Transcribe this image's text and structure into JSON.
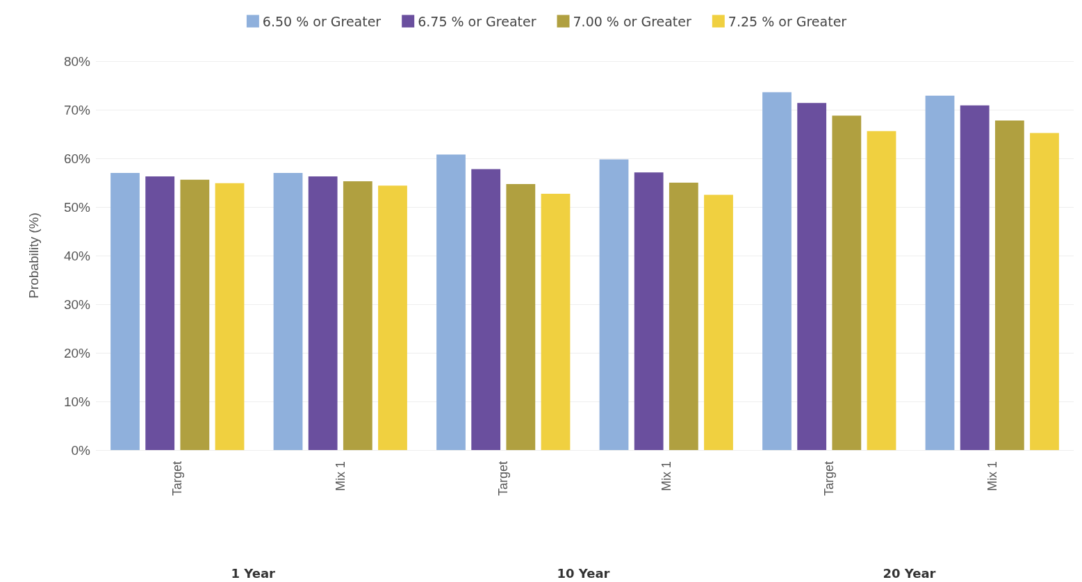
{
  "chart_data": {
    "type": "bar",
    "ylabel": "Probability (%)",
    "categories": [
      "Target",
      "Mix 1",
      "Target",
      "Mix 1",
      "Target",
      "Mix 1"
    ],
    "annotations": [
      "1 Year",
      "10 Year",
      "20 Year"
    ],
    "series": [
      {
        "name": "6.50 % or Greater",
        "color": "#8fb0dc",
        "values": [
          57.0,
          57.0,
          60.8,
          59.8,
          73.6,
          72.9
        ]
      },
      {
        "name": "6.75 % or Greater",
        "color": "#6a4f9e",
        "values": [
          56.3,
          56.3,
          57.8,
          57.1,
          71.4,
          70.9
        ]
      },
      {
        "name": "7.00 % or Greater",
        "color": "#b0a040",
        "values": [
          55.6,
          55.3,
          54.7,
          55.0,
          68.8,
          67.8
        ]
      },
      {
        "name": "7.25 % or Greater",
        "color": "#f0d040",
        "values": [
          54.9,
          54.4,
          52.7,
          52.5,
          65.6,
          65.2
        ]
      }
    ],
    "ylim": [
      0,
      80
    ],
    "yticks": [
      {
        "value": 0,
        "label": "0%"
      },
      {
        "value": 10,
        "label": "10%"
      },
      {
        "value": 20,
        "label": "20%"
      },
      {
        "value": 30,
        "label": "30%"
      },
      {
        "value": 40,
        "label": "40%"
      },
      {
        "value": 50,
        "label": "50%"
      },
      {
        "value": 60,
        "label": "60%"
      },
      {
        "value": 70,
        "label": "70%"
      },
      {
        "value": 80,
        "label": "80%"
      }
    ],
    "grid": "y",
    "legend": "top"
  }
}
